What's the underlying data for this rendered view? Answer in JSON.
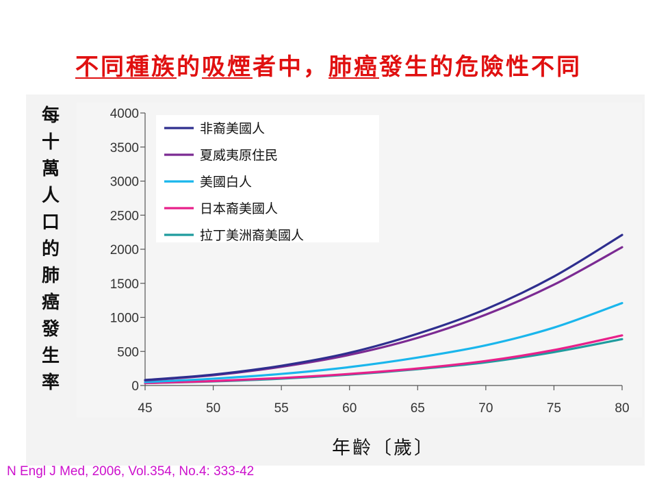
{
  "title": {
    "segments": [
      {
        "text": "不同種族",
        "underline": true
      },
      {
        "text": "的",
        "underline": false
      },
      {
        "text": "吸煙",
        "underline": true
      },
      {
        "text": "者中，",
        "underline": false
      },
      {
        "text": "肺癌",
        "underline": true
      },
      {
        "text": "發生的危險性不同",
        "underline": false
      }
    ],
    "color": "#e01010"
  },
  "ylabel": "每十萬人口的肺癌發生率",
  "xlabel": "年齡〔歲〕",
  "source": "N Engl J Med, 2006, Vol.354, No.4: 333-42",
  "chart_data": {
    "type": "line",
    "x": [
      45,
      50,
      55,
      60,
      65,
      70,
      75,
      80
    ],
    "xlim": [
      45,
      80
    ],
    "ylim": [
      0,
      4000
    ],
    "xticks": [
      "45",
      "50",
      "55",
      "60",
      "65",
      "70",
      "75",
      "80"
    ],
    "yticks": [
      "0",
      "500",
      "1000",
      "1500",
      "2000",
      "2500",
      "3000",
      "3500",
      "4000"
    ],
    "grid": false,
    "legend_position": "top-left",
    "series": [
      {
        "name": "非裔美國人",
        "color": "#2e2e8e",
        "values": [
          80,
          160,
          290,
          480,
          760,
          1120,
          1600,
          2210
        ]
      },
      {
        "name": "夏威夷原住民",
        "color": "#7b2a92",
        "values": [
          75,
          150,
          275,
          450,
          700,
          1040,
          1480,
          2030
        ]
      },
      {
        "name": "美國白人",
        "color": "#1ab6ec",
        "values": [
          50,
          100,
          170,
          270,
          410,
          590,
          850,
          1210
        ]
      },
      {
        "name": "日本裔美國人",
        "color": "#e8208a",
        "values": [
          35,
          65,
          110,
          170,
          250,
          360,
          520,
          735
        ]
      },
      {
        "name": "拉丁美洲裔美國人",
        "color": "#1f9b9e",
        "values": [
          35,
          60,
          100,
          160,
          240,
          340,
          490,
          680
        ]
      }
    ]
  }
}
